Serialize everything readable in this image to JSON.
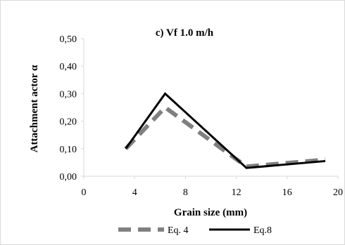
{
  "chart_data": {
    "type": "line",
    "title": "c) Vf 1.0 m/h",
    "xlabel": "Grain size (mm)",
    "ylabel": "Attachment actor α",
    "xlim": [
      0,
      20
    ],
    "ylim": [
      0,
      0.5
    ],
    "x_ticks": [
      "0",
      "4",
      "8",
      "12",
      "16",
      "20"
    ],
    "y_ticks": [
      "0,00",
      "0,10",
      "0,20",
      "0,30",
      "0,40",
      "0,50"
    ],
    "grid": false,
    "legend_position": "bottom",
    "series": [
      {
        "name": "Eq. 4",
        "style": "dashed",
        "color": "#808080",
        "x": [
          3.3,
          6.4,
          12.8,
          19.0
        ],
        "y": [
          0.1,
          0.25,
          0.035,
          0.06
        ]
      },
      {
        "name": "Eq.8",
        "style": "solid",
        "color": "#000000",
        "x": [
          3.3,
          6.4,
          12.8,
          19.0
        ],
        "y": [
          0.1,
          0.3,
          0.03,
          0.055
        ]
      }
    ]
  }
}
